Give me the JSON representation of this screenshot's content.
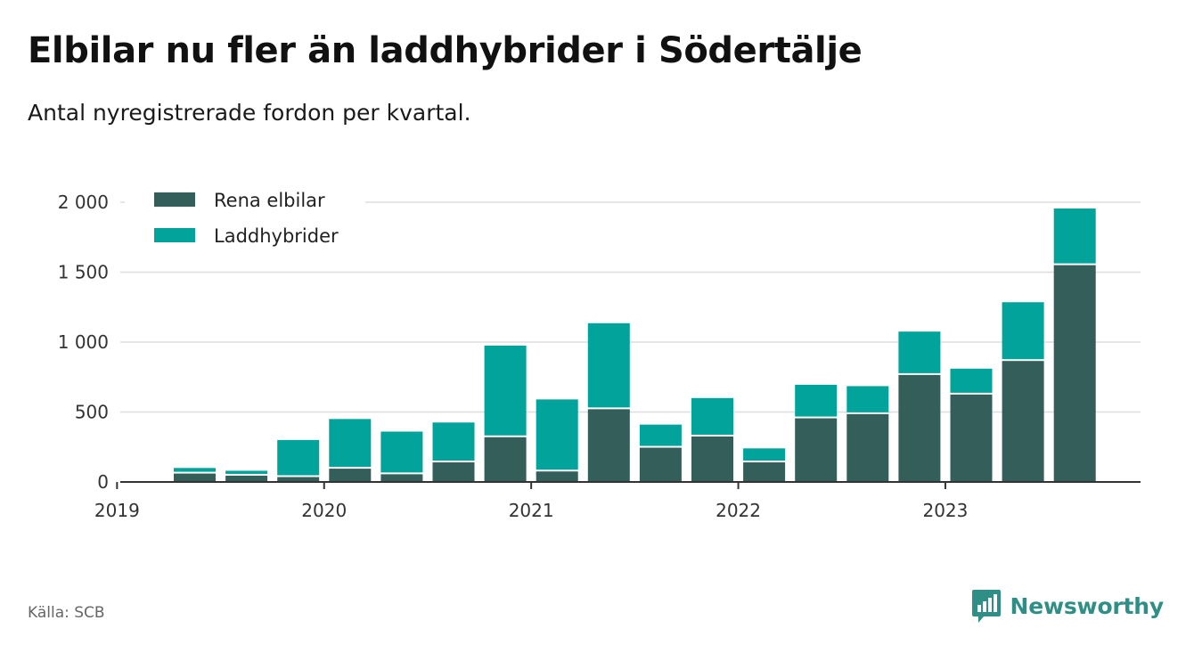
{
  "title": "Elbilar nu fler än laddhybrider i Södertälje",
  "subtitle": "Antal nyregistrerade fordon per kvartal.",
  "source": "Källa: SCB",
  "brand": {
    "name": "Newsworthy",
    "icon": "newsworthy-logo-icon"
  },
  "colors": {
    "rena_elbilar": "#345e5a",
    "laddhybrider": "#02a39a",
    "grid": "#dddddd",
    "axis": "#333333"
  },
  "chart_data": {
    "type": "bar",
    "stacked": true,
    "categories": [
      "2019 Q2",
      "2019 Q3",
      "2019 Q4",
      "2020 Q1",
      "2020 Q2",
      "2020 Q3",
      "2020 Q4",
      "2021 Q1",
      "2021 Q2",
      "2021 Q3",
      "2021 Q4",
      "2022 Q1",
      "2022 Q2",
      "2022 Q3",
      "2022 Q4",
      "2023 Q1",
      "2023 Q2",
      "2023 Q3"
    ],
    "series": [
      {
        "name": "Rena elbilar",
        "values": [
          60,
          45,
          35,
          95,
          55,
          140,
          320,
          75,
          520,
          245,
          325,
          140,
          455,
          485,
          765,
          625,
          865,
          1550
        ]
      },
      {
        "name": "Laddhybrider",
        "values": [
          40,
          35,
          265,
          355,
          305,
          285,
          655,
          515,
          615,
          165,
          275,
          100,
          240,
          200,
          310,
          185,
          420,
          405
        ]
      }
    ],
    "x_ticks": [
      "2019",
      "2020",
      "2021",
      "2022",
      "2023"
    ],
    "y_ticks": [
      0,
      500,
      1000,
      1500,
      2000
    ],
    "y_tick_labels": [
      "0",
      "500",
      "1 000",
      "1 500",
      "2 000"
    ],
    "ylim": [
      0,
      2000
    ],
    "xlabel": "",
    "ylabel": "",
    "legend_position": "top-left",
    "grid": true
  }
}
